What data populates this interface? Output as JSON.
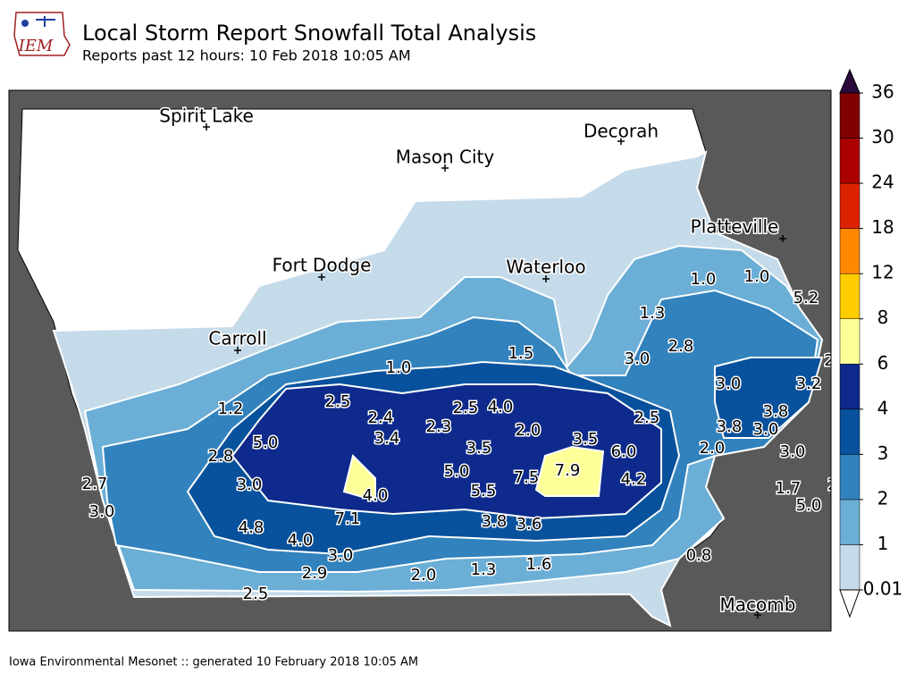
{
  "header": {
    "logo": "IEM",
    "title": "Local Storm Report Snowfall Total Analysis",
    "subtitle": "Reports past 12 hours: 10 Feb 2018 10:05 AM"
  },
  "cities": [
    "Spirit Lake",
    "Decorah",
    "Mason City",
    "Platteville",
    "Fort Dodge",
    "Waterloo",
    "Carroll",
    "Macomb"
  ],
  "reports": [
    "1.0",
    "1.0",
    "5.2",
    "1.3",
    "2.8",
    "1.5",
    "3.0",
    "1.0",
    "3.0",
    "3.2",
    "2.5",
    "2.5",
    "4.0",
    "1.2",
    "2.4",
    "3.8",
    "2.5",
    "2.3",
    "2.0",
    "3.8",
    "3.0",
    "3.4",
    "3.5",
    "5.0",
    "3.5",
    "2.0",
    "6.0",
    "3.0",
    "2.8",
    "7.9",
    "5.0",
    "7.5",
    "4.2",
    "2.7",
    "3.0",
    "1.7",
    "5.5",
    "4.0",
    "5.0",
    "3.0",
    "7.1",
    "3.8",
    "3.6",
    "4.8",
    "4.0",
    "3.0",
    "0.8",
    "1.6",
    "2.9",
    "1.3",
    "2.0",
    "2.5",
    "2",
    "2"
  ],
  "colorbar": {
    "levels": [
      0.01,
      1,
      2,
      3,
      4,
      6,
      8,
      12,
      18,
      24,
      30,
      36
    ],
    "colors": [
      "#c6dbea",
      "#6baed6",
      "#3182bd",
      "#08519c",
      "#0d2a8c",
      "#ffff99",
      "#ffcc00",
      "#ff8800",
      "#dd2200",
      "#aa0000",
      "#800000"
    ],
    "over_color": "#2a0a3a"
  },
  "footer": "Iowa Environmental Mesonet :: generated 10 February 2018 10:05 AM"
}
